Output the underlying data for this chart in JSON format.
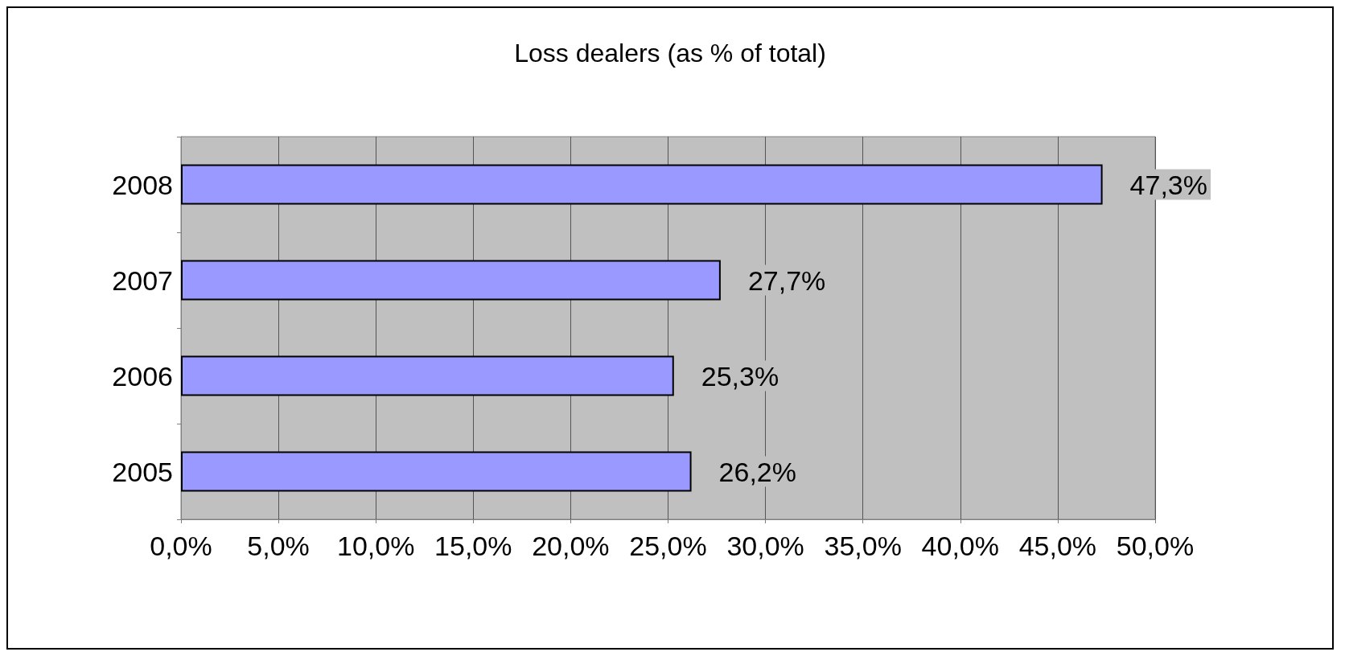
{
  "chart_data": {
    "type": "bar",
    "title": "Loss dealers (as % of total)",
    "orientation": "horizontal",
    "categories": [
      "2008",
      "2007",
      "2006",
      "2005"
    ],
    "values": [
      47.3,
      27.7,
      25.3,
      26.2
    ],
    "value_labels": [
      "47,3%",
      "27,7%",
      "25,3%",
      "26,2%"
    ],
    "color": "#9999ff",
    "xlim": [
      0,
      50
    ],
    "xticks": [
      {
        "value": 0,
        "label": "0,0%"
      },
      {
        "value": 5,
        "label": "5,0%"
      },
      {
        "value": 10,
        "label": "10,0%"
      },
      {
        "value": 15,
        "label": "15,0%"
      },
      {
        "value": 20,
        "label": "20,0%"
      },
      {
        "value": 25,
        "label": "25,0%"
      },
      {
        "value": 30,
        "label": "30,0%"
      },
      {
        "value": 35,
        "label": "35,0%"
      },
      {
        "value": 40,
        "label": "40,0%"
      },
      {
        "value": 45,
        "label": "45,0%"
      },
      {
        "value": 50,
        "label": "50,0%"
      }
    ],
    "grid": "x"
  }
}
